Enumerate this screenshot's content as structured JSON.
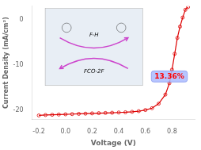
{
  "chart_data": {
    "type": "line",
    "title": "",
    "xlabel": "Voltage (V)",
    "ylabel": "Current Density (mA/cm²)",
    "x": [
      -0.2,
      -0.15,
      -0.1,
      -0.05,
      0.0,
      0.05,
      0.1,
      0.15,
      0.2,
      0.25,
      0.3,
      0.35,
      0.4,
      0.45,
      0.5,
      0.55,
      0.6,
      0.65,
      0.7,
      0.75,
      0.78,
      0.8,
      0.82,
      0.84,
      0.86,
      0.88,
      0.9,
      0.92
    ],
    "series": [
      {
        "color": "#dd0000",
        "marker": "circle",
        "values": [
          -21.1,
          -21.0,
          -20.95,
          -20.9,
          -20.85,
          -20.8,
          -20.75,
          -20.7,
          -20.65,
          -20.6,
          -20.55,
          -20.5,
          -20.45,
          -20.4,
          -20.3,
          -20.15,
          -19.9,
          -19.5,
          -18.5,
          -16.5,
          -14.0,
          -11.0,
          -7.5,
          -4.0,
          -1.5,
          0.5,
          2.2,
          2.8
        ]
      }
    ],
    "xlim": [
      -0.25,
      0.97
    ],
    "ylim": [
      -22,
      3
    ],
    "xticks": [
      -0.2,
      {
        "value": 0.0,
        "label": "0.0"
      },
      0.2,
      0.4,
      0.6,
      0.8
    ],
    "yticks": [
      -20,
      -10,
      0
    ],
    "grid": false,
    "annotations": [
      {
        "text": "13.36%",
        "x": 0.78,
        "y": -12.5,
        "color": "#ff0000"
      },
      {
        "text": "F-H"
      },
      {
        "text": "FCO-2F"
      }
    ]
  }
}
